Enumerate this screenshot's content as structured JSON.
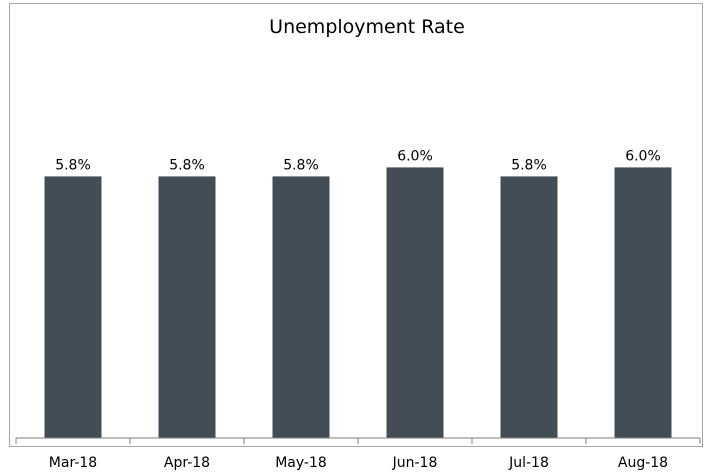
{
  "chart_data": {
    "type": "bar",
    "title": "Unemployment Rate",
    "categories": [
      "Mar-18",
      "Apr-18",
      "May-18",
      "Jun-18",
      "Jul-18",
      "Aug-18"
    ],
    "values": [
      5.8,
      5.8,
      5.8,
      6.0,
      5.8,
      6.0
    ],
    "data_labels": [
      "5.8%",
      "5.8%",
      "5.8%",
      "6.0%",
      "5.8%",
      "6.0%"
    ],
    "value_unit": "%",
    "xlabel": "",
    "ylabel": "",
    "grid": false,
    "legend": "none",
    "bar_color": "#434d56"
  }
}
